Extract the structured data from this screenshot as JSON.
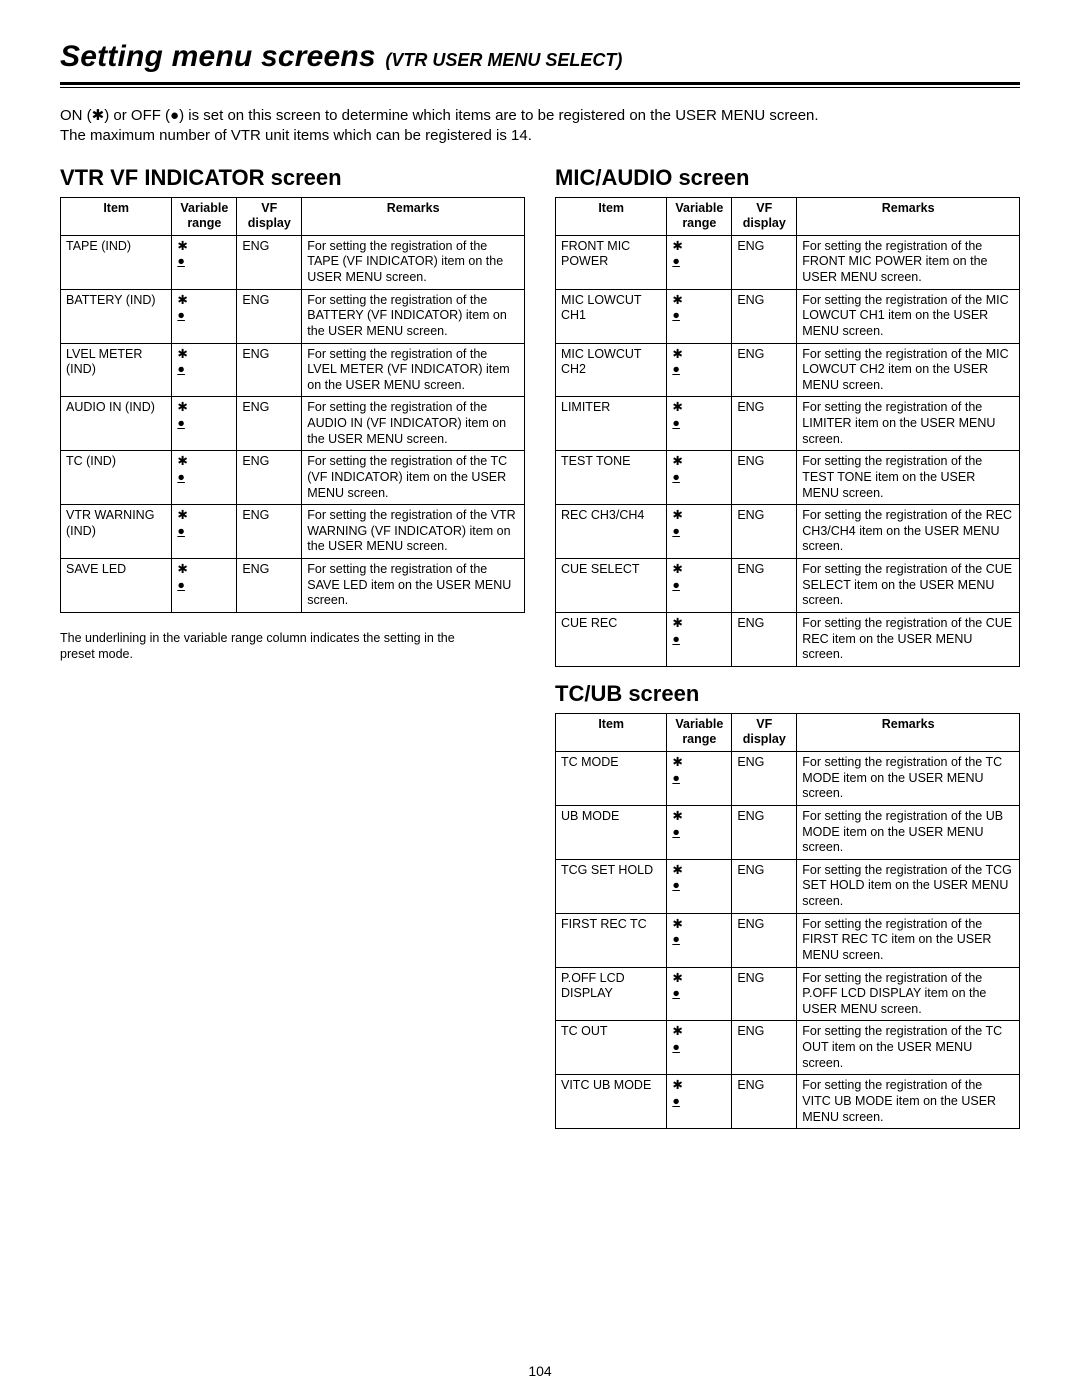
{
  "header": {
    "title_main": "Setting menu screens",
    "title_sub": "(VTR USER MENU SELECT)"
  },
  "intro": {
    "line1": "ON (✱) or OFF (●) is set on this screen to determine which items are to be registered on the USER MENU screen.",
    "line2": "The maximum number of VTR unit items which can be registered is 14."
  },
  "table_headers": {
    "item": "Item",
    "variable_range": "Variable range",
    "vf_display": "VF display",
    "remarks": "Remarks"
  },
  "legend": "The underlining in the variable range column indicates the setting in the preset mode.",
  "page_number": "104",
  "sections": {
    "vtr_vf": {
      "title": "VTR VF INDICATOR screen",
      "rows": [
        {
          "item": "TAPE (IND)",
          "vf": "ENG",
          "remarks": "For setting the registration of the TAPE (VF INDICATOR) item on the USER MENU screen."
        },
        {
          "item": "BATTERY (IND)",
          "vf": "ENG",
          "remarks": "For setting the registration of the BATTERY (VF INDICATOR) item on the USER MENU screen."
        },
        {
          "item": "LVEL METER (IND)",
          "vf": "ENG",
          "remarks": "For setting the registration of the LVEL METER (VF INDICATOR) item on the USER MENU screen."
        },
        {
          "item": "AUDIO IN (IND)",
          "vf": "ENG",
          "remarks": "For setting the registration of the AUDIO IN (VF INDICATOR) item on the USER MENU screen."
        },
        {
          "item": "TC (IND)",
          "vf": "ENG",
          "remarks": "For setting the registration of the TC (VF INDICATOR) item on the USER MENU screen."
        },
        {
          "item": "VTR WARNING (IND)",
          "vf": "ENG",
          "remarks": "For setting the registration of the VTR WARNING (VF INDICATOR) item on the USER MENU screen."
        },
        {
          "item": "SAVE LED",
          "vf": "ENG",
          "remarks": "For setting the registration of the SAVE LED item on the USER MENU screen."
        }
      ]
    },
    "mic_audio": {
      "title": "MIC/AUDIO screen",
      "rows": [
        {
          "item": "FRONT MIC POWER",
          "vf": "ENG",
          "remarks": "For setting the registration of the FRONT MIC POWER item on the USER MENU screen."
        },
        {
          "item": "MIC LOWCUT CH1",
          "vf": "ENG",
          "remarks": "For setting the registration of the MIC LOWCUT CH1 item on the USER MENU screen."
        },
        {
          "item": "MIC LOWCUT CH2",
          "vf": "ENG",
          "remarks": "For setting the registration of the MIC LOWCUT CH2 item on the USER MENU screen."
        },
        {
          "item": "LIMITER",
          "vf": "ENG",
          "remarks": "For setting the registration of the LIMITER item on the USER MENU screen."
        },
        {
          "item": "TEST TONE",
          "vf": "ENG",
          "remarks": "For setting the registration of the TEST TONE item on the USER MENU screen."
        },
        {
          "item": "REC CH3/CH4",
          "vf": "ENG",
          "remarks": "For setting the registration of the REC CH3/CH4 item on the USER MENU screen."
        },
        {
          "item": "CUE SELECT",
          "vf": "ENG",
          "remarks": "For setting the registration of the CUE SELECT item on the USER MENU screen."
        },
        {
          "item": "CUE REC",
          "vf": "ENG",
          "remarks": "For setting the registration of the CUE REC item on the USER MENU screen."
        }
      ]
    },
    "tc_ub": {
      "title": "TC/UB screen",
      "rows": [
        {
          "item": "TC MODE",
          "vf": "ENG",
          "remarks": "For setting the registration of the TC MODE item on the USER MENU screen."
        },
        {
          "item": "UB MODE",
          "vf": "ENG",
          "remarks": "For setting the registration of the UB MODE item on the USER MENU screen."
        },
        {
          "item": "TCG SET HOLD",
          "vf": "ENG",
          "remarks": "For setting the registration of the TCG SET HOLD item on the USER MENU screen."
        },
        {
          "item": "FIRST REC TC",
          "vf": "ENG",
          "remarks": "For setting the registration of the FIRST REC TC item on the USER MENU screen."
        },
        {
          "item": "P.OFF LCD DISPLAY",
          "vf": "ENG",
          "remarks": "For setting the registration of the P.OFF LCD DISPLAY item on the USER MENU screen."
        },
        {
          "item": "TC OUT",
          "vf": "ENG",
          "remarks": "For setting the registration of the TC OUT item on the USER MENU screen."
        },
        {
          "item": "VITC UB MODE",
          "vf": "ENG",
          "remarks": "For setting the registration of the VITC UB MODE item on the USER MENU screen."
        }
      ]
    }
  }
}
